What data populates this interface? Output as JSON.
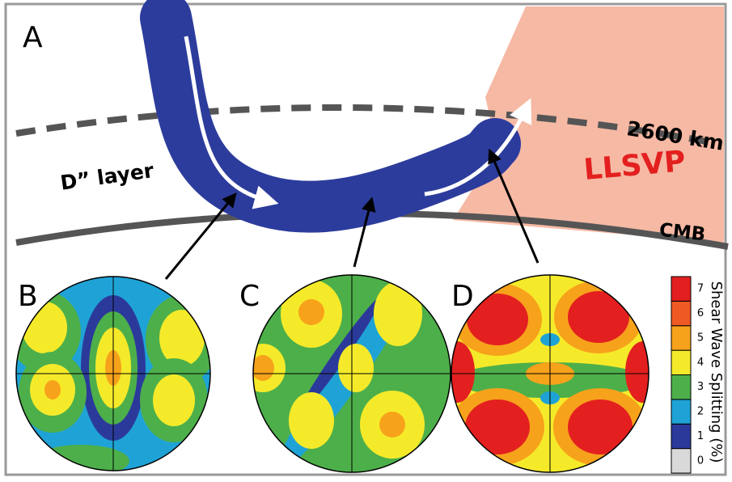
{
  "panel_a": {
    "letter": "A",
    "depth_label": "2600 km",
    "layer_label": "D” layer",
    "llsvp_label": "LLSVP",
    "cmb_label": "CMB"
  },
  "panels": [
    {
      "letter": "B"
    },
    {
      "letter": "C"
    },
    {
      "letter": "D"
    }
  ],
  "colorbar": {
    "label": "Shear Wave Splitting (%)",
    "ticks": [
      0,
      1,
      2,
      3,
      4,
      5,
      6,
      7
    ]
  }
}
